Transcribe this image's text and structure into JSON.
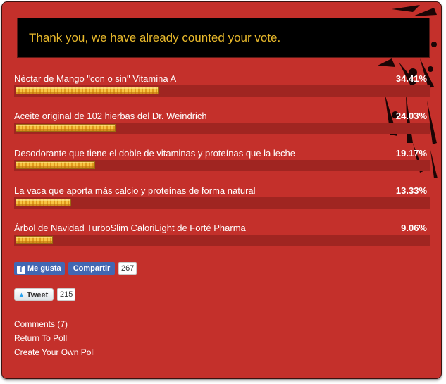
{
  "notice": "Thank you, we have already counted your vote.",
  "results": [
    {
      "label": "Néctar de Mango \"con o sin\" Vitamina A",
      "percent_label": "34.41%",
      "percent": 34.41
    },
    {
      "label": "Aceite original de 102 hierbas del Dr. Weindrich",
      "percent_label": "24.03%",
      "percent": 24.03
    },
    {
      "label": "Desodorante que tiene el doble de vitaminas y proteínas que la leche",
      "percent_label": "19.17%",
      "percent": 19.17
    },
    {
      "label": "La vaca que aporta más calcio y proteínas de forma natural",
      "percent_label": "13.33%",
      "percent": 13.33
    },
    {
      "label": "Árbol de Navidad TurboSlim CaloriLight de Forté Pharma",
      "percent_label": "9.06%",
      "percent": 9.06
    }
  ],
  "social": {
    "like_label": "Me gusta",
    "share_label": "Compartir",
    "facebook_count": "267",
    "tweet_label": "Tweet",
    "tweet_count": "215"
  },
  "links": {
    "comments": "Comments (7)",
    "return": "Return To Poll",
    "create": "Create Your Own Poll"
  },
  "colors": {
    "background": "#c4302b",
    "track": "#a02521",
    "notice_text": "#e7b82b",
    "facebook": "#4267b2"
  }
}
